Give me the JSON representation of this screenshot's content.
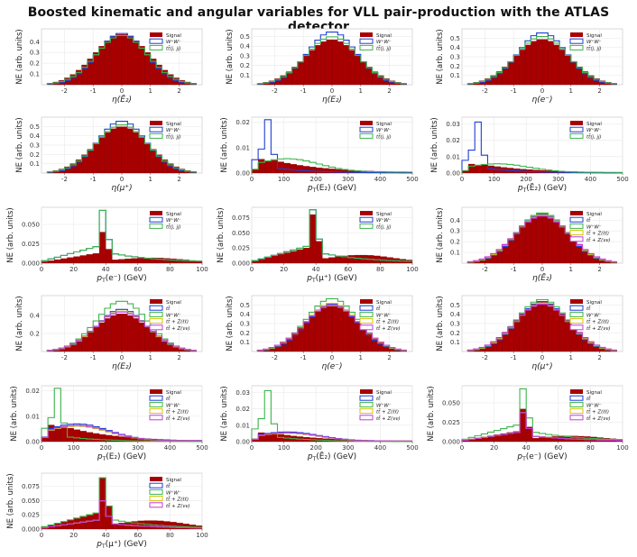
{
  "title": "Boosted kinematic and angular variables for VLL pair-production with the ATLAS detector",
  "colors": {
    "signal": "#a80000",
    "ww": "#1f3fd6",
    "ttjj": "#3cb44b",
    "tt": "#1f3fd6",
    "ttZll": "#d4c400",
    "ttZvv": "#c23fd8"
  },
  "legend_sets": {
    "A": [
      {
        "key": "signal",
        "label": "Signal"
      },
      {
        "key": "ww",
        "label": "W⁺W⁻"
      },
      {
        "key": "ttjj",
        "label": "tt̄(j, jj)"
      }
    ],
    "B": [
      {
        "key": "signal",
        "label": "Signal"
      },
      {
        "key": "tt",
        "label": "tt̄"
      },
      {
        "key": "ttjj",
        "label": "W⁺W⁻"
      },
      {
        "key": "ttZll",
        "label": "tt̄ + Z(ℓℓ)"
      },
      {
        "key": "ttZvv",
        "label": "tt̄ + Z(νν)"
      }
    ]
  },
  "chart_data": [
    {
      "type": "bar",
      "legend": "A",
      "kind": "eta",
      "xlabel": "η(Ē₂)",
      "ylabel": "NE (arb. units)",
      "xlim": [
        -2.8,
        2.8
      ],
      "ylim": [
        0,
        0.52
      ],
      "xticks": [
        -2,
        -1,
        0,
        1,
        2
      ],
      "yticks": [
        0.1,
        0.2,
        0.3,
        0.4
      ],
      "peaks": {
        "signal": 0.47,
        "ww": 0.48,
        "ttjj": 0.46
      }
    },
    {
      "type": "bar",
      "legend": "A",
      "kind": "eta",
      "xlabel": "η(E₂)",
      "ylabel": "NE (arb. units)",
      "xlim": [
        -2.8,
        2.8
      ],
      "ylim": [
        0,
        0.58
      ],
      "xticks": [
        -2,
        -1,
        0,
        1,
        2
      ],
      "yticks": [
        0.1,
        0.2,
        0.3,
        0.4,
        0.5
      ],
      "peaks": {
        "signal": 0.47,
        "ww": 0.55,
        "ttjj": 0.5
      }
    },
    {
      "type": "bar",
      "legend": "A",
      "kind": "eta",
      "xlabel": "η(e⁻)",
      "ylabel": "NE (arb. units)",
      "xlim": [
        -2.8,
        2.8
      ],
      "ylim": [
        0,
        0.6
      ],
      "xticks": [
        -2,
        -1,
        0,
        1,
        2
      ],
      "yticks": [
        0.1,
        0.2,
        0.3,
        0.4,
        0.5
      ],
      "peaks": {
        "signal": 0.49,
        "ww": 0.56,
        "ttjj": 0.52
      }
    },
    {
      "type": "bar",
      "legend": "A",
      "kind": "eta",
      "xlabel": "η(μ⁺)",
      "ylabel": "NE (arb. units)",
      "xlim": [
        -2.8,
        2.8
      ],
      "ylim": [
        0,
        0.6
      ],
      "xticks": [
        -2,
        -1,
        0,
        1,
        2
      ],
      "yticks": [
        0.1,
        0.2,
        0.3,
        0.4,
        0.5
      ],
      "peaks": {
        "signal": 0.5,
        "ww": 0.56,
        "ttjj": 0.52
      }
    },
    {
      "type": "bar",
      "legend": "A",
      "kind": "ptE",
      "xlabel": "p_T(E₂) (GeV)",
      "ylabel": "NE (arb. units)",
      "xlim": [
        0,
        500
      ],
      "ylim": [
        0,
        0.022
      ],
      "xticks": [
        0,
        100,
        200,
        300,
        400,
        500
      ],
      "yticks": [
        0.0,
        0.01,
        0.02
      ],
      "ytickfmt": 2,
      "wwpeak": 0.021,
      "sigpeak": 0.005
    },
    {
      "type": "bar",
      "legend": "A",
      "kind": "ptE",
      "xlabel": "p_T(Ē₂) (GeV)",
      "ylabel": "NE (arb. units)",
      "xlim": [
        0,
        500
      ],
      "ylim": [
        0,
        0.034
      ],
      "xticks": [
        0,
        100,
        200,
        300,
        400,
        500
      ],
      "yticks": [
        0.0,
        0.01,
        0.02,
        0.03
      ],
      "ytickfmt": 2,
      "wwpeak": 0.031,
      "sigpeak": 0.005
    },
    {
      "type": "bar",
      "legend": "A",
      "kind": "ptlep",
      "xlabel": "p_T(e⁻) (GeV)",
      "ylabel": "NE (arb. units)",
      "xlim": [
        0,
        100
      ],
      "ylim": [
        0,
        0.072
      ],
      "xticks": [
        0,
        20,
        40,
        60,
        80,
        100
      ],
      "yticks": [
        0.0,
        0.025,
        0.05
      ],
      "ytickfmt": 3,
      "spike": 0.068,
      "sigspike": 0.04
    },
    {
      "type": "bar",
      "legend": "A",
      "kind": "ptlep",
      "xlabel": "p_T(μ⁺) (GeV)",
      "ylabel": "NE (arb. units)",
      "xlim": [
        0,
        100
      ],
      "ylim": [
        0,
        0.092
      ],
      "xticks": [
        0,
        20,
        40,
        60,
        80,
        100
      ],
      "yticks": [
        0.0,
        0.025,
        0.05,
        0.075
      ],
      "ytickfmt": 3,
      "spike": 0.088,
      "sigspike": 0.08
    },
    {
      "type": "bar",
      "legend": "B",
      "kind": "eta",
      "xlabel": "η(Ē₂)",
      "ylabel": "NE (arb. units)",
      "xlim": [
        -2.8,
        2.8
      ],
      "ylim": [
        0,
        0.52
      ],
      "xticks": [
        -2,
        -1,
        0,
        1,
        2
      ],
      "yticks": [
        0.1,
        0.2,
        0.3,
        0.4
      ],
      "peaks": {
        "signal": 0.45,
        "tt": 0.46,
        "ttjj": 0.47,
        "ttZll": 0.45,
        "ttZvv": 0.44
      }
    },
    {
      "type": "bar",
      "legend": "B",
      "kind": "eta",
      "xlabel": "η(E₂)",
      "ylabel": "NE (arb. units)",
      "xlim": [
        -2.8,
        2.8
      ],
      "ylim": [
        0,
        0.62
      ],
      "xticks": [
        -2,
        -1,
        0,
        1,
        2
      ],
      "yticks": [
        0.2,
        0.4
      ],
      "peaks": {
        "signal": 0.42,
        "tt": 0.47,
        "ttjj": 0.56,
        "ttZll": 0.45,
        "ttZvv": 0.44
      }
    },
    {
      "type": "bar",
      "legend": "B",
      "kind": "eta",
      "xlabel": "η(e⁻)",
      "ylabel": "NE (arb. units)",
      "xlim": [
        -2.8,
        2.8
      ],
      "ylim": [
        0,
        0.6
      ],
      "xticks": [
        -2,
        -1,
        0,
        1,
        2
      ],
      "yticks": [
        0.1,
        0.2,
        0.3,
        0.4,
        0.5
      ],
      "peaks": {
        "signal": 0.49,
        "tt": 0.51,
        "ttjj": 0.57,
        "ttZll": 0.52,
        "ttZvv": 0.5
      }
    },
    {
      "type": "bar",
      "legend": "B",
      "kind": "eta",
      "xlabel": "η(μ⁺)",
      "ylabel": "NE (arb. units)",
      "xlim": [
        -2.8,
        2.8
      ],
      "ylim": [
        0,
        0.6
      ],
      "xticks": [
        -2,
        -1,
        0,
        1,
        2
      ],
      "yticks": [
        0.1,
        0.2,
        0.3,
        0.4,
        0.5
      ],
      "peaks": {
        "signal": 0.53,
        "tt": 0.54,
        "ttjj": 0.56,
        "ttZll": 0.52,
        "ttZvv": 0.51
      }
    },
    {
      "type": "bar",
      "legend": "B",
      "kind": "ptEB",
      "xlabel": "p_T(E₂) (GeV)",
      "ylabel": "NE (arb. units)",
      "xlim": [
        0,
        500
      ],
      "ylim": [
        0,
        0.022
      ],
      "xticks": [
        0,
        100,
        200,
        300,
        400,
        500
      ],
      "yticks": [
        0.0,
        0.01,
        0.02
      ],
      "ytickfmt": 2,
      "wwpeak": 0.021,
      "sigpeak": 0.006
    },
    {
      "type": "bar",
      "legend": "B",
      "kind": "ptEB",
      "xlabel": "p_T(Ē₂) (GeV)",
      "ylabel": "NE (arb. units)",
      "xlim": [
        0,
        500
      ],
      "ylim": [
        0,
        0.034
      ],
      "xticks": [
        0,
        100,
        200,
        300,
        400,
        500
      ],
      "yticks": [
        0.0,
        0.01,
        0.02,
        0.03
      ],
      "ytickfmt": 2,
      "wwpeak": 0.031,
      "sigpeak": 0.005
    },
    {
      "type": "bar",
      "legend": "B",
      "kind": "ptlep",
      "xlabel": "p_T(e⁻) (GeV)",
      "ylabel": "NE (arb. units)",
      "xlim": [
        0,
        100
      ],
      "ylim": [
        0,
        0.072
      ],
      "xticks": [
        0,
        20,
        40,
        60,
        80,
        100
      ],
      "yticks": [
        0.0,
        0.025,
        0.05
      ],
      "ytickfmt": 3,
      "spike": 0.068,
      "sigspike": 0.042
    },
    {
      "type": "bar",
      "legend": "B",
      "kind": "ptlep",
      "xlabel": "p_T(μ⁺) (GeV)",
      "ylabel": "NE (arb. units)",
      "xlim": [
        0,
        100
      ],
      "ylim": [
        0,
        0.098
      ],
      "xticks": [
        0,
        20,
        40,
        60,
        80,
        100
      ],
      "yticks": [
        0.0,
        0.025,
        0.05,
        0.075
      ],
      "ytickfmt": 3,
      "spike": 0.09,
      "sigspike": 0.09
    }
  ]
}
